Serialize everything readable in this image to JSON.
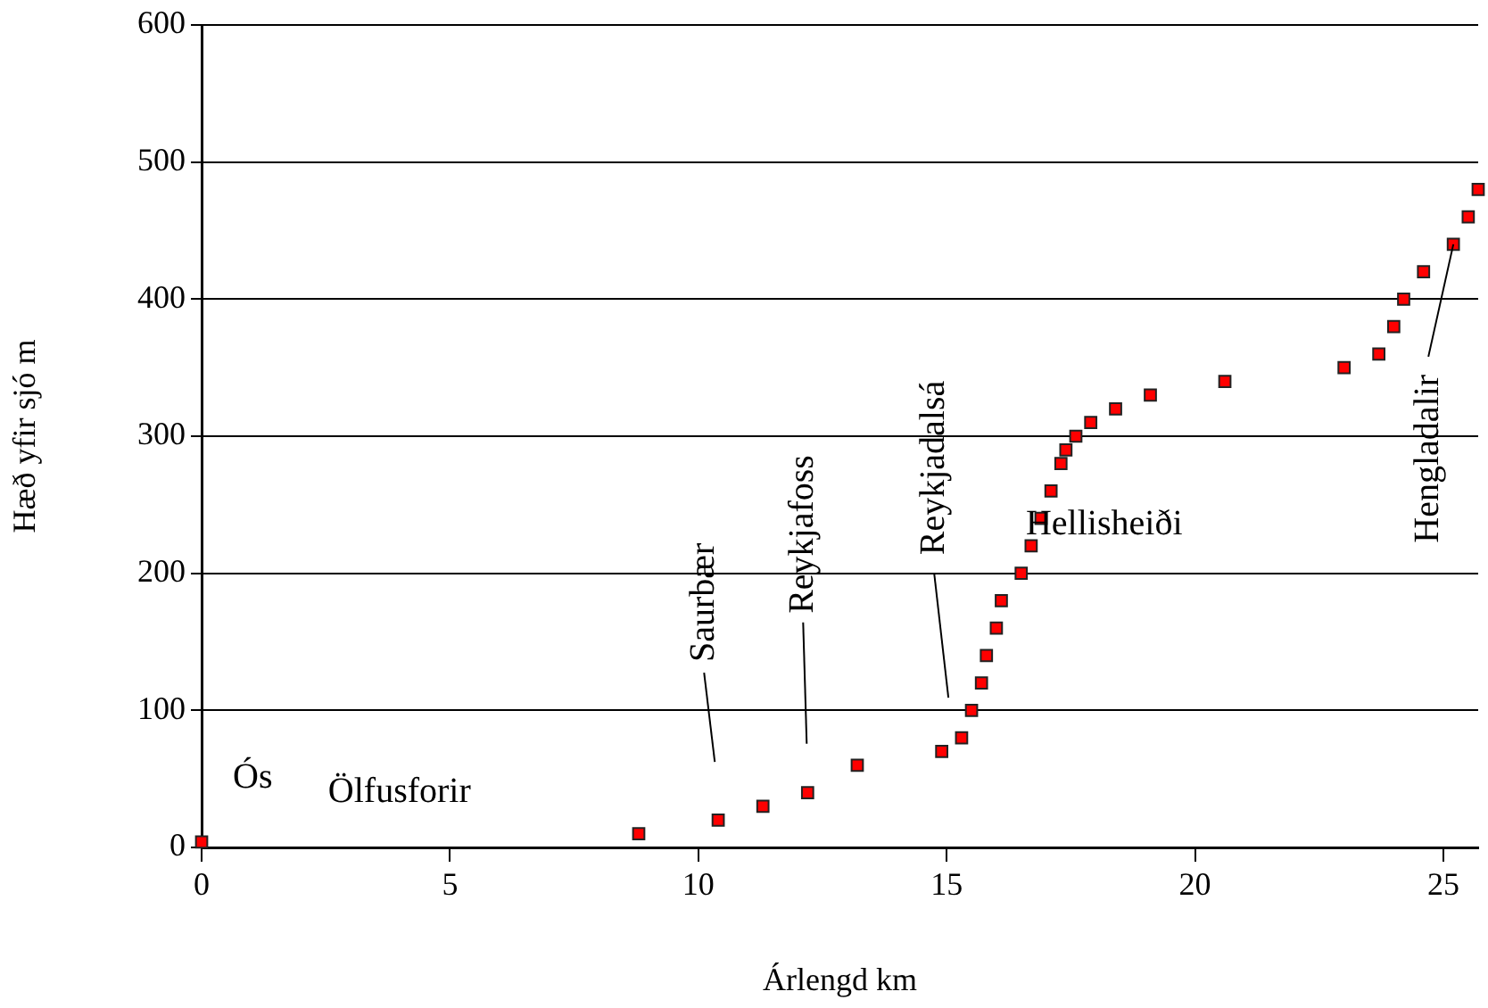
{
  "chart_data": {
    "type": "scatter",
    "xlabel": "Árlengd km",
    "ylabel": "Hæð yfir sjó m",
    "x": [
      0,
      8.8,
      10.4,
      11.3,
      12.2,
      13.2,
      14.9,
      15.3,
      15.5,
      15.7,
      15.8,
      16.0,
      16.1,
      16.5,
      16.7,
      16.9,
      17.1,
      17.3,
      17.4,
      17.6,
      17.9,
      18.4,
      19.1,
      20.6,
      23.0,
      23.7,
      24.0,
      24.2,
      24.6,
      25.2,
      25.5,
      25.7
    ],
    "series": [
      {
        "color": "#ff0000",
        "values": [
          4,
          10,
          20,
          30,
          40,
          60,
          70,
          80,
          100,
          120,
          140,
          160,
          180,
          200,
          220,
          240,
          260,
          280,
          290,
          300,
          310,
          320,
          330,
          340,
          350,
          360,
          380,
          400,
          420,
          440,
          460,
          480
        ]
      }
    ],
    "xlim": [
      0,
      25.7
    ],
    "xticks": [
      0,
      5,
      10,
      15,
      20,
      25
    ],
    "ylim": [
      0,
      600
    ],
    "yticks": [
      0,
      100,
      200,
      300,
      400,
      500,
      600
    ],
    "grid": "y",
    "legend": false,
    "marker": "square",
    "annotations": [
      "Ós",
      "Ölfusforir",
      "Saurbær",
      "Reykjafoss",
      "Reykjadalsá",
      "Hellisheiði",
      {
        "text": "Hengladalir",
        "x": 25.2,
        "y": 440
      }
    ]
  }
}
